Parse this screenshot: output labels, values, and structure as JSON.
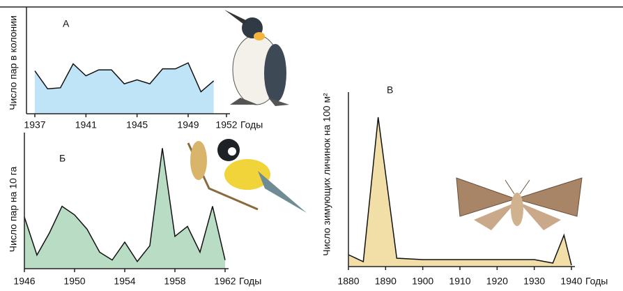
{
  "chart_data": [
    {
      "type": "area",
      "annotation": "А",
      "y_label": "Число пар в колонии",
      "x_label": "Годы",
      "x": [
        1937,
        1938,
        1939,
        1940,
        1941,
        1942,
        1943,
        1944,
        1945,
        1946,
        1947,
        1948,
        1949,
        1950,
        1951
      ],
      "values": [
        43,
        25,
        26,
        50,
        38,
        44,
        44,
        30,
        34,
        30,
        45,
        45,
        51,
        22,
        33
      ],
      "xlim": [
        1937,
        1952
      ],
      "ylim": [
        0,
        100
      ],
      "xticks": [
        1937,
        1941,
        1945,
        1949,
        1952
      ],
      "color": "#bfe3f7"
    },
    {
      "type": "area",
      "annotation": "Б",
      "y_label": "Число пар на 10 га",
      "x_label": "Годы",
      "x": [
        1946,
        1947,
        1948,
        1949,
        1950,
        1951,
        1952,
        1953,
        1954,
        1955,
        1956,
        1957,
        1958,
        1959,
        1960,
        1961,
        1962
      ],
      "values": [
        72,
        19,
        50,
        87,
        75,
        55,
        23,
        12,
        37,
        10,
        32,
        168,
        45,
        59,
        23,
        87,
        12
      ],
      "xlim": [
        1946,
        1962
      ],
      "ylim": [
        0,
        180
      ],
      "xticks": [
        1946,
        1950,
        1954,
        1958,
        1962
      ],
      "color": "#b9dcc4"
    },
    {
      "type": "area",
      "annotation": "В",
      "y_label": "Число зимующих личинок на 100 м²",
      "x_label": "Годы",
      "x": [
        1880,
        1884,
        1888,
        1893,
        1900,
        1910,
        1920,
        1930,
        1935,
        1938,
        1940
      ],
      "values": [
        17,
        7,
        214,
        12,
        10,
        10,
        10,
        10,
        5,
        45,
        2
      ],
      "xlim": [
        1880,
        1940
      ],
      "ylim": [
        0,
        240
      ],
      "xticks": [
        1880,
        1890,
        1900,
        1910,
        1920,
        1930,
        1940
      ],
      "color": "#f2dfa8"
    }
  ]
}
